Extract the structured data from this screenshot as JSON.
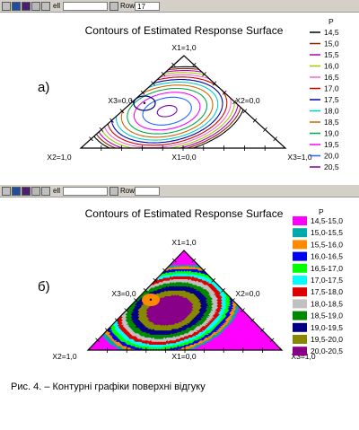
{
  "toolbar": {
    "field_label_1": "ell",
    "field_label_2": "Row",
    "field_value_2": "17"
  },
  "colors": {
    "toolbar_bg": "#d4d0c8",
    "toolbar_button_colors": [
      "#c0c0c0",
      "#1f4e9e",
      "#4a1f6e",
      "#b8b8b8",
      "#c0c0c0"
    ]
  },
  "chart_data": [
    {
      "type": "contour",
      "panel_label": "а)",
      "title": "Contours of Estimated Response Surface",
      "vertex_labels": {
        "top": "X1=1,0",
        "left": "X2=1,0",
        "right": "X3=1,0"
      },
      "edge_labels": {
        "left": "X3=0,0",
        "right": "X2=0,0",
        "bottom": "X1=0,0"
      },
      "legend_title": "P",
      "levels": [
        "14,5",
        "15,0",
        "15,5",
        "16,0",
        "16,5",
        "17,0",
        "17,5",
        "18,0",
        "18,5",
        "19,0",
        "19,5",
        "20,0",
        "20,5"
      ],
      "level_colors": [
        "#000000",
        "#8b2500",
        "#b000b0",
        "#99cc00",
        "#ff66cc",
        "#cc0000",
        "#0000aa",
        "#00cccc",
        "#cc6600",
        "#00aa44",
        "#ff00ff",
        "#2266ff",
        "#7700aa"
      ],
      "optimum_marker": "•"
    },
    {
      "type": "filled-contour",
      "panel_label": "б)",
      "title": "Contours of Estimated Response Surface",
      "vertex_labels": {
        "top": "X1=1,0",
        "left": "X2=1,0",
        "right": "X3=1,0"
      },
      "edge_labels": {
        "left": "X3=0,0",
        "right": "X2=0,0",
        "bottom": "X1=0,0"
      },
      "legend_title": "P",
      "levels": [
        "14,5-15,0",
        "15,0-15,5",
        "15,5-16,0",
        "16,0-16,5",
        "16,5-17,0",
        "17,0-17,5",
        "17,5-18,0",
        "18,0-18,5",
        "18,5-19,0",
        "19,0-19,5",
        "19,5-20,0",
        "20,0-20,5"
      ],
      "level_colors": [
        "#ff00ff",
        "#00aaaa",
        "#ff8a00",
        "#0000ee",
        "#00ff00",
        "#00ffff",
        "#dd0000",
        "#c0c0c0",
        "#008800",
        "#000080",
        "#888800",
        "#880088"
      ],
      "optimum_marker": "•"
    }
  ],
  "caption": "Рис. 4. – Контурні графіки поверхні відгуку"
}
